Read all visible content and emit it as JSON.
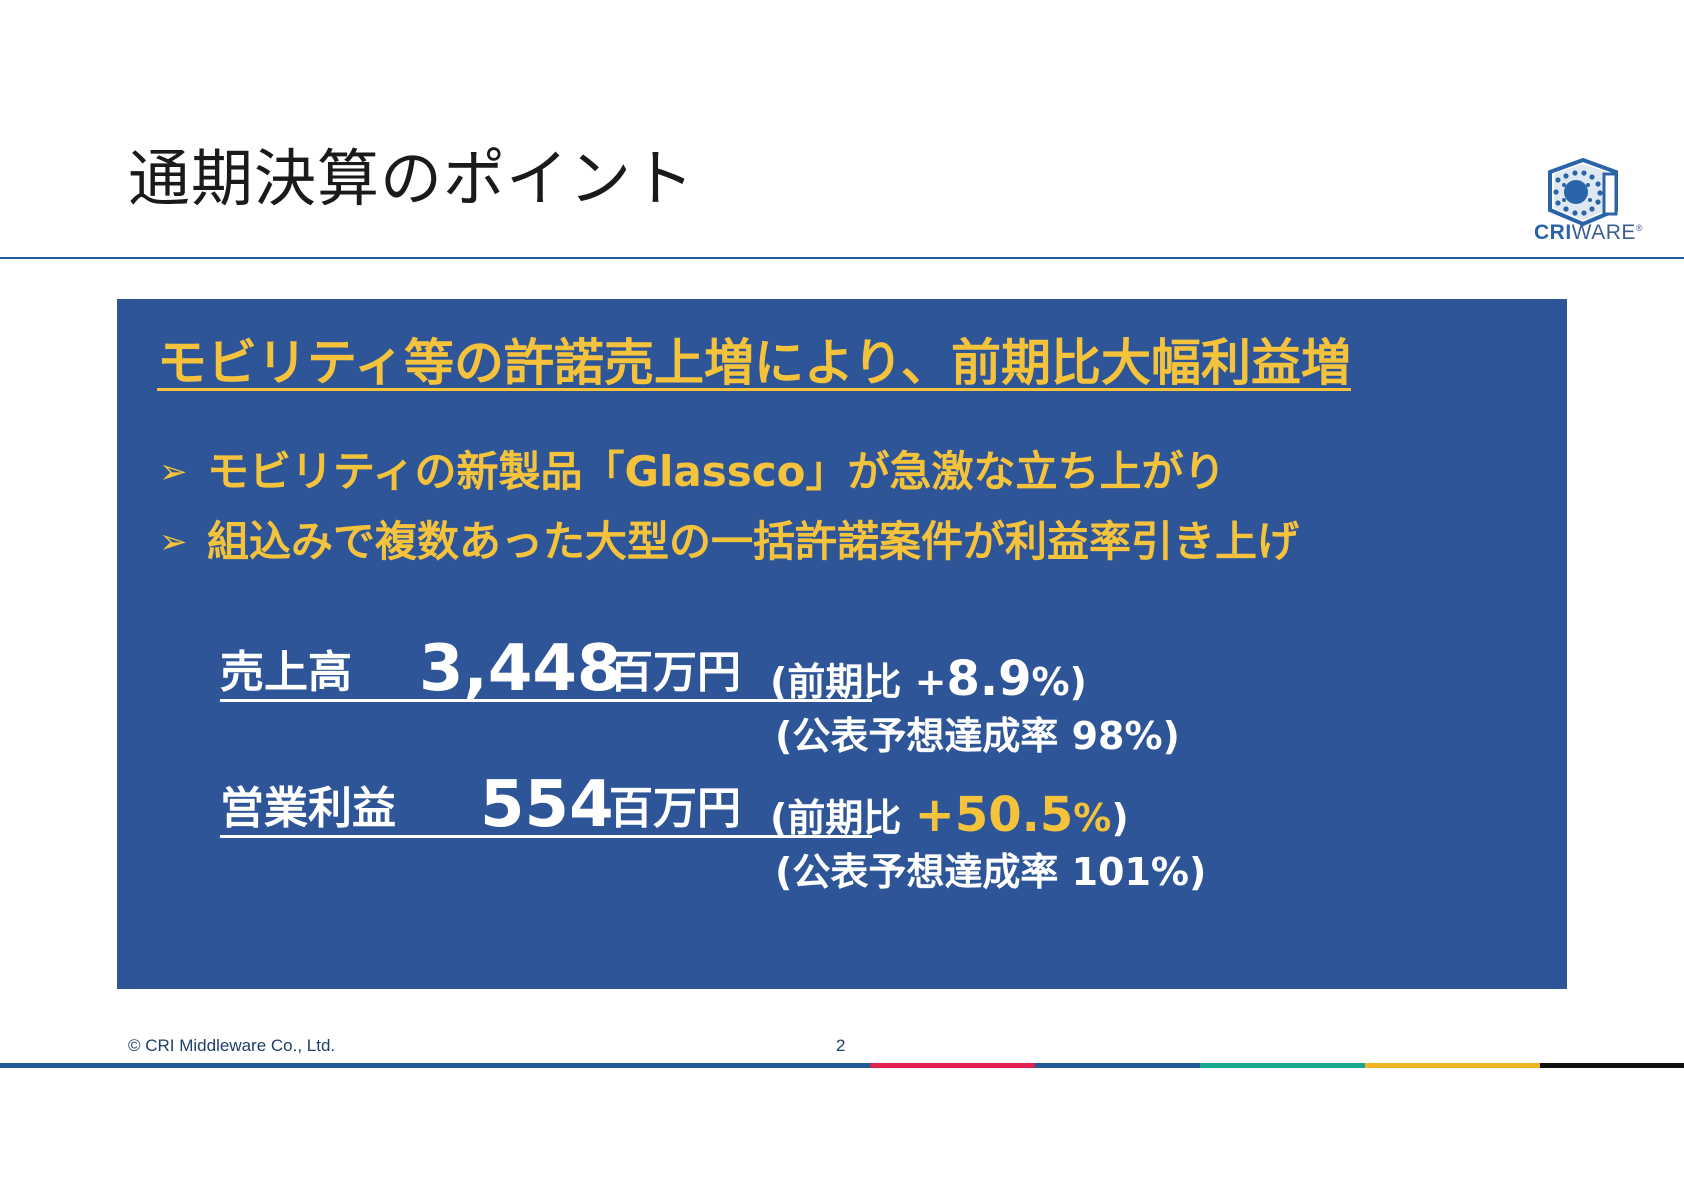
{
  "header": {
    "title": "通期決算のポイント",
    "logo": {
      "icon": "criware-cube-icon",
      "text_bold": "CRI",
      "text_light": "WARE",
      "registered": "®"
    }
  },
  "panel": {
    "headline": "モビリティ等の許諾売上増により、前期比大幅利益増",
    "bullets": [
      {
        "mark": "➢",
        "text": "モビリティの新製品「Glassco」が急激な立ち上がり"
      },
      {
        "mark": "➢",
        "text": "組込みで複数あった大型の一括許諾案件が利益率引き上げ"
      }
    ],
    "metrics": [
      {
        "name": "売上高",
        "value": "3,448",
        "unit": "百万円",
        "yoy_prefix": "(前期比 +",
        "yoy_value": "8.9",
        "yoy_suffix": "%)",
        "forecast": "(公表予想達成率 98%)"
      },
      {
        "name": "営業利益",
        "value": "554",
        "unit": "百万円",
        "yoy_prefix": "(前期比 ",
        "yoy_value": "+50.5",
        "yoy_pct": "%",
        "yoy_suffix": ")",
        "forecast": "(公表予想達成率 101%)"
      }
    ]
  },
  "footer": {
    "copyright": "© CRI Middleware Co., Ltd.",
    "page_number": "2"
  },
  "colors": {
    "panel_bg": "#2e5597",
    "accent_gold": "#f5c33b",
    "rule_blue": "#1f5a9a",
    "footer_segments": [
      "#1f5a9a",
      "#e0214f",
      "#1f5a9a",
      "#1aa68c",
      "#f0b323",
      "#111111"
    ]
  }
}
